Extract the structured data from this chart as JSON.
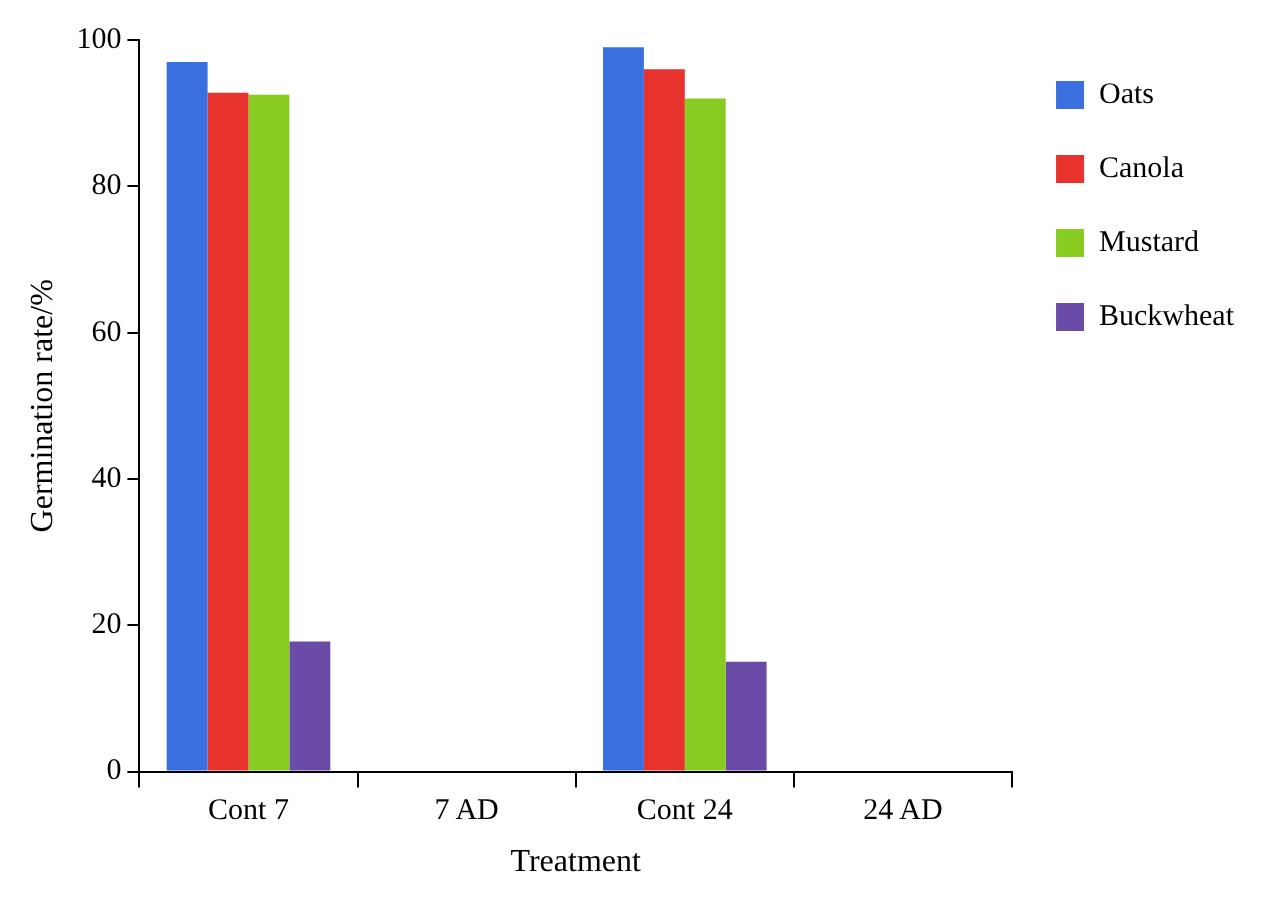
{
  "chart_data": {
    "type": "bar",
    "xlabel": "Treatment",
    "ylabel": "Germination rate/%",
    "categories": [
      "Cont 7",
      "7 AD",
      "Cont 24",
      "24 AD"
    ],
    "series": [
      {
        "name": "Oats",
        "color": "#3a6fe0",
        "values": [
          97,
          0,
          99,
          0
        ]
      },
      {
        "name": "Canola",
        "color": "#e8322e",
        "values": [
          92.8,
          0,
          96,
          0
        ]
      },
      {
        "name": "Mustard",
        "color": "#88cc22",
        "values": [
          92.5,
          0,
          92,
          0
        ]
      },
      {
        "name": "Buckwheat",
        "color": "#6a4ca8",
        "values": [
          17.8,
          0,
          15,
          0
        ]
      }
    ],
    "ylim": [
      0,
      100
    ],
    "yticks": [
      0,
      20,
      40,
      60,
      80,
      100
    ],
    "grid": false,
    "legend": "top right"
  }
}
